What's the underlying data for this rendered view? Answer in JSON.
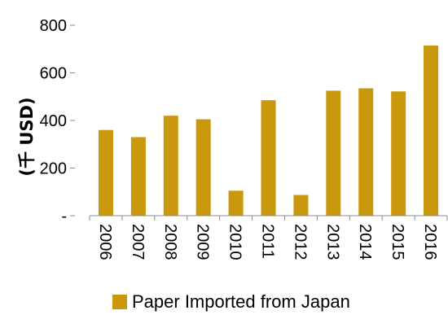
{
  "chart_data": {
    "type": "bar",
    "categories": [
      "2006",
      "2007",
      "2008",
      "2009",
      "2010",
      "2011",
      "2012",
      "2013",
      "2014",
      "2015",
      "2016"
    ],
    "series": [
      {
        "name": "Paper Imported from Japan",
        "values": [
          360,
          330,
          420,
          405,
          105,
          485,
          87,
          525,
          535,
          522,
          715
        ],
        "color": "#C9980D"
      }
    ],
    "ylabel": "(千 USD)",
    "ylim": [
      0,
      800
    ],
    "yticks": [
      0,
      200,
      400,
      600,
      800
    ],
    "ytick_labels": [
      "-",
      "200",
      "400",
      "600",
      "800"
    ],
    "grid": false,
    "legend_position": "bottom"
  }
}
